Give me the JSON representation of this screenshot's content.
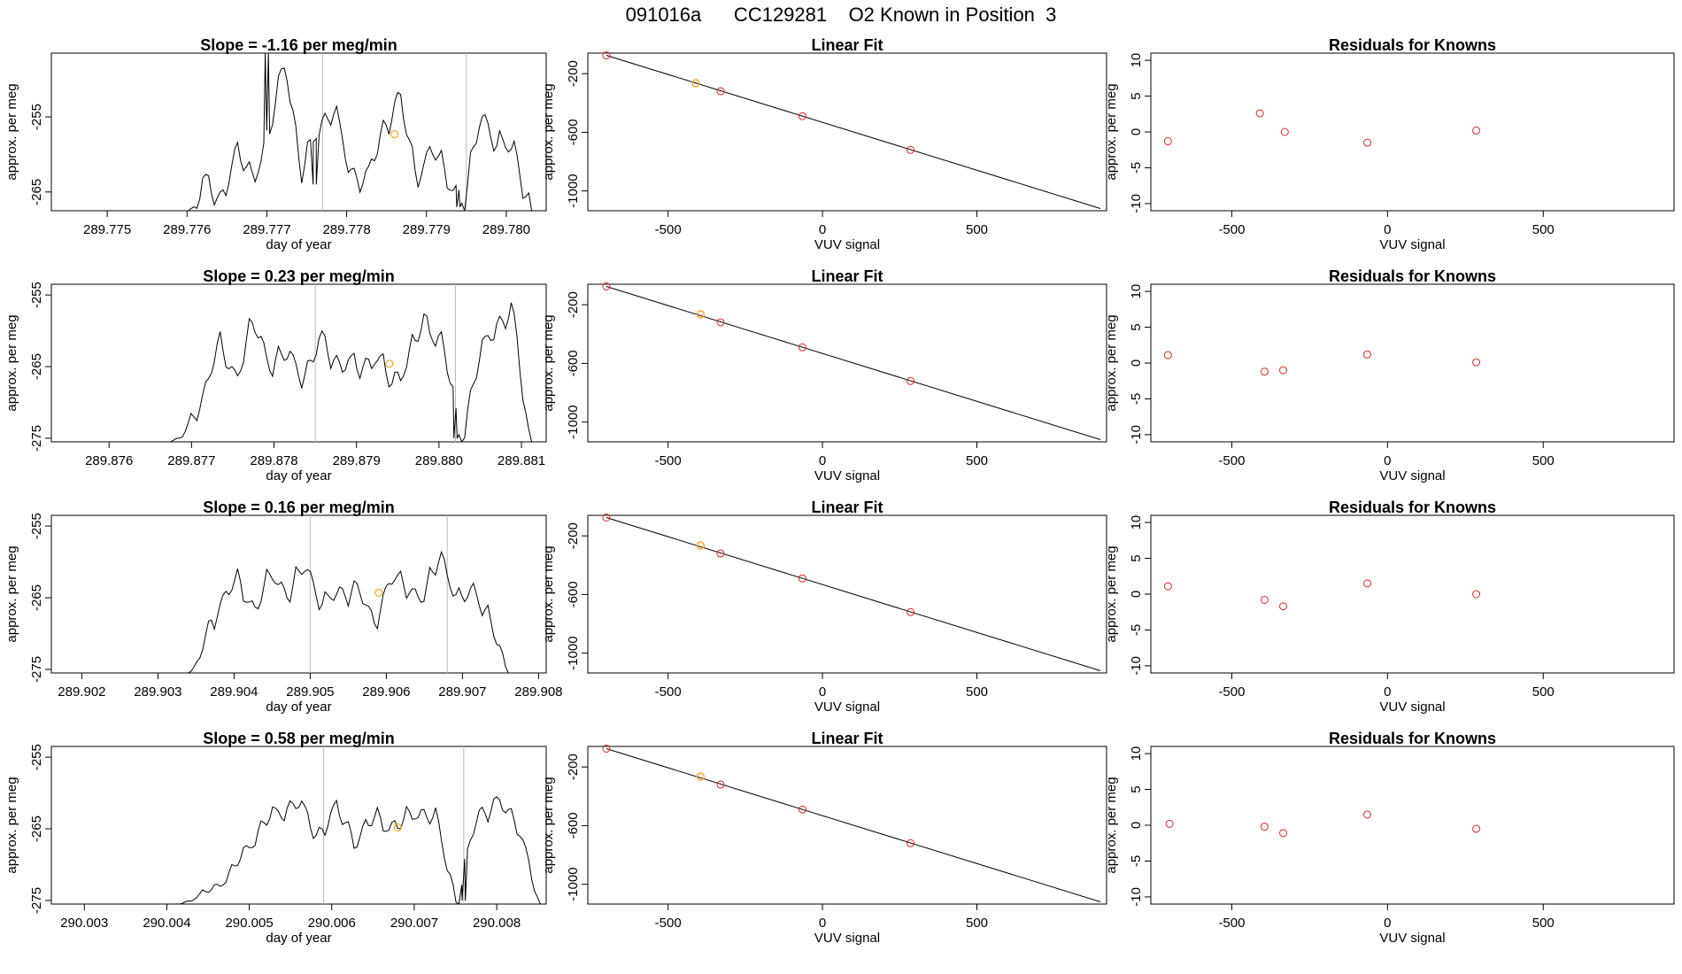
{
  "main_title": "091016a      CC129281    O2 Known in Position  3",
  "chart_data": [
    {
      "row": 1,
      "time_series": {
        "type": "line",
        "title": "Slope =  -1.16  per meg/min",
        "xlabel": "day of year",
        "ylabel": "approx. per meg",
        "xlim": [
          289.7743,
          289.7805
        ],
        "ylim": [
          -267.5,
          -246.5
        ],
        "x_ticks": [
          289.775,
          289.776,
          289.777,
          289.778,
          289.779,
          289.78
        ],
        "x_tick_labels": [
          "289.775",
          "289.776",
          "289.777",
          "289.778",
          "289.779",
          "289.780"
        ],
        "y_ticks": [
          -255,
          -265
        ],
        "y_tick_labels": [
          "-255",
          "-265"
        ],
        "vlines": [
          289.7777,
          289.7795
        ],
        "x_start": 289.776,
        "x_end": 289.7803,
        "baseline": -267.5,
        "level": -256.5,
        "noise": 3.0,
        "ramp_end": 289.7762,
        "highlight_point": {
          "x": 289.7786,
          "y": -257.3
        },
        "dips": [
          {
            "x": 289.7776,
            "y": -264
          },
          {
            "x": 289.7794,
            "y": -267
          }
        ],
        "spike": {
          "x": 289.777,
          "y": -246.5
        },
        "seed": 11,
        "values": [
          -268,
          -264,
          -265.8,
          -260.2,
          -262.5,
          -258.1,
          -246.5,
          -263.2,
          -255.8,
          -254.6,
          -261.9,
          -264.0,
          -256.2,
          -252.7,
          -262.4,
          -259.7,
          -262.9,
          -266.8,
          -253.6,
          -259.5,
          -258.4,
          -268
        ]
      },
      "linear_fit": {
        "type": "scatter",
        "title": "Linear Fit",
        "xlabel": "VUV signal",
        "ylabel": "approx. per meg",
        "xlim": [
          -760,
          920
        ],
        "ylim": [
          -1135,
          -60
        ],
        "x_ticks": [
          -500,
          0,
          500
        ],
        "x_tick_labels": [
          "-500",
          "0",
          "500"
        ],
        "y_ticks": [
          -200,
          -600,
          -1000
        ],
        "y_tick_labels": [
          "-200",
          "-600",
          "-1000"
        ],
        "line": {
          "x": [
            -700,
            900
          ],
          "y": [
            -75,
            -1120
          ]
        },
        "points": [
          {
            "x": -700,
            "y": -75
          },
          {
            "x": -330,
            "y": -320
          },
          {
            "x": -65,
            "y": -490
          },
          {
            "x": 285,
            "y": -720
          }
        ],
        "highlight": {
          "x": -410,
          "y": -265
        }
      },
      "residuals": {
        "type": "scatter",
        "title": "Residuals for Knowns",
        "xlabel": "VUV signal",
        "ylabel": "approx. per meg",
        "xlim": [
          -760,
          920
        ],
        "ylim": [
          -11,
          11
        ],
        "x_ticks": [
          -500,
          0,
          500
        ],
        "x_tick_labels": [
          "-500",
          "0",
          "500"
        ],
        "y_ticks": [
          10,
          5,
          0,
          -5,
          -10
        ],
        "y_tick_labels": [
          "10",
          "5",
          "0",
          "-5",
          "-10"
        ],
        "points": [
          {
            "x": -705,
            "y": -1.3
          },
          {
            "x": -410,
            "y": 2.6
          },
          {
            "x": -330,
            "y": 0.0
          },
          {
            "x": -65,
            "y": -1.5
          },
          {
            "x": 285,
            "y": 0.2
          }
        ]
      }
    },
    {
      "row": 2,
      "time_series": {
        "type": "line",
        "title": "Slope =  0.23  per meg/min",
        "xlabel": "day of year",
        "ylabel": "approx. per meg",
        "xlim": [
          289.8753,
          289.8813
        ],
        "ylim": [
          -275.5,
          -253.5
        ],
        "x_ticks": [
          289.876,
          289.877,
          289.878,
          289.879,
          289.88,
          289.881
        ],
        "x_tick_labels": [
          "289.876",
          "289.877",
          "289.878",
          "289.879",
          "289.880",
          "289.881"
        ],
        "y_ticks": [
          -255,
          -265,
          -275
        ],
        "y_tick_labels": [
          "-255",
          "-265",
          "-275"
        ],
        "vlines": [
          289.8785,
          289.8802
        ],
        "x_start": 289.8767,
        "x_end": 289.8811,
        "baseline": -275.5,
        "level": -265.0,
        "noise": 3.0,
        "ramp_end": 289.8772,
        "highlight_point": {
          "x": 289.8794,
          "y": -264.6
        },
        "dips": [
          {
            "x": 289.8802,
            "y": -275
          }
        ],
        "spike": null,
        "seed": 23,
        "values": [
          -275.5,
          -272.8,
          -268.4,
          -262.4,
          -266.1,
          -259.2,
          -264.3,
          -263.7,
          -266.0,
          -261.4,
          -264.6,
          -265.2,
          -263.5,
          -267.3,
          -263.7,
          -258.4,
          -262.1,
          -275.5,
          -264.6,
          -259.0,
          -257.4,
          -275.5
        ]
      },
      "linear_fit": {
        "type": "scatter",
        "title": "Linear Fit",
        "xlabel": "VUV signal",
        "ylabel": "approx. per meg",
        "xlim": [
          -760,
          920
        ],
        "ylim": [
          -1135,
          -60
        ],
        "x_ticks": [
          -500,
          0,
          500
        ],
        "x_tick_labels": [
          "-500",
          "0",
          "500"
        ],
        "y_ticks": [
          -200,
          -600,
          -1000
        ],
        "y_tick_labels": [
          "-200",
          "-600",
          "-1000"
        ],
        "line": {
          "x": [
            -700,
            900
          ],
          "y": [
            -75,
            -1120
          ]
        },
        "points": [
          {
            "x": -700,
            "y": -75
          },
          {
            "x": -330,
            "y": -320
          },
          {
            "x": -65,
            "y": -490
          },
          {
            "x": 285,
            "y": -720
          }
        ],
        "highlight": {
          "x": -395,
          "y": -265
        }
      },
      "residuals": {
        "type": "scatter",
        "title": "Residuals for Knowns",
        "xlabel": "VUV signal",
        "ylabel": "approx. per meg",
        "xlim": [
          -760,
          920
        ],
        "ylim": [
          -11,
          11
        ],
        "x_ticks": [
          -500,
          0,
          500
        ],
        "x_tick_labels": [
          "-500",
          "0",
          "500"
        ],
        "y_ticks": [
          10,
          5,
          0,
          -5,
          -10
        ],
        "y_tick_labels": [
          "10",
          "5",
          "0",
          "-5",
          "-10"
        ],
        "points": [
          {
            "x": -705,
            "y": 1.1
          },
          {
            "x": -395,
            "y": -1.2
          },
          {
            "x": -335,
            "y": -1.0
          },
          {
            "x": -65,
            "y": 1.2
          },
          {
            "x": 285,
            "y": 0.1
          }
        ]
      }
    },
    {
      "row": 3,
      "time_series": {
        "type": "line",
        "title": "Slope =  0.16  per meg/min",
        "xlabel": "day of year",
        "ylabel": "approx. per meg",
        "xlim": [
          289.9016,
          289.9081
        ],
        "ylim": [
          -275.5,
          -253.5
        ],
        "x_ticks": [
          289.902,
          289.903,
          289.904,
          289.905,
          289.906,
          289.907,
          289.908
        ],
        "x_tick_labels": [
          "289.902",
          "289.903",
          "289.904",
          "289.905",
          "289.906",
          "289.907",
          "289.908"
        ],
        "y_ticks": [
          -255,
          -265,
          -275
        ],
        "y_tick_labels": [
          "-255",
          "-265",
          "-275"
        ],
        "vlines": [
          289.905,
          289.9068
        ],
        "x_start": 289.9034,
        "x_end": 289.9076,
        "baseline": -275.5,
        "level": -265.5,
        "noise": 2.6,
        "ramp_end": 289.9037,
        "highlight_point": {
          "x": 289.9059,
          "y": -264.3
        },
        "dips": [],
        "spike": null,
        "seed": 37,
        "values": [
          -275.5,
          -269.0,
          -265.7,
          -262.4,
          -266.9,
          -261.3,
          -264.8,
          -260.1,
          -266.4,
          -264.0,
          -263.9,
          -268.3,
          -262.7,
          -263.1,
          -265.4,
          -258.3,
          -266.1,
          -263.2,
          -269.2,
          -275.5
        ]
      },
      "linear_fit": {
        "type": "scatter",
        "title": "Linear Fit",
        "xlabel": "VUV signal",
        "ylabel": "approx. per meg",
        "xlim": [
          -760,
          920
        ],
        "ylim": [
          -1135,
          -60
        ],
        "x_ticks": [
          -500,
          0,
          500
        ],
        "x_tick_labels": [
          "-500",
          "0",
          "500"
        ],
        "y_ticks": [
          -200,
          -600,
          -1000
        ],
        "y_tick_labels": [
          "-200",
          "-600",
          "-1000"
        ],
        "line": {
          "x": [
            -700,
            900
          ],
          "y": [
            -75,
            -1120
          ]
        },
        "points": [
          {
            "x": -700,
            "y": -75
          },
          {
            "x": -330,
            "y": -320
          },
          {
            "x": -65,
            "y": -490
          },
          {
            "x": 285,
            "y": -720
          }
        ],
        "highlight": {
          "x": -395,
          "y": -265
        }
      },
      "residuals": {
        "type": "scatter",
        "title": "Residuals for Knowns",
        "xlabel": "VUV signal",
        "ylabel": "approx. per meg",
        "xlim": [
          -760,
          920
        ],
        "ylim": [
          -11,
          11
        ],
        "x_ticks": [
          -500,
          0,
          500
        ],
        "x_tick_labels": [
          "-500",
          "0",
          "500"
        ],
        "y_ticks": [
          10,
          5,
          0,
          -5,
          -10
        ],
        "y_tick_labels": [
          "10",
          "5",
          "0",
          "-5",
          "-10"
        ],
        "points": [
          {
            "x": -705,
            "y": 1.1
          },
          {
            "x": -395,
            "y": -0.8
          },
          {
            "x": -335,
            "y": -1.7
          },
          {
            "x": -65,
            "y": 1.5
          },
          {
            "x": 285,
            "y": 0.0
          }
        ]
      }
    },
    {
      "row": 4,
      "time_series": {
        "type": "line",
        "title": "Slope =  0.58  per meg/min",
        "xlabel": "day of year",
        "ylabel": "approx. per meg",
        "xlim": [
          290.0026,
          290.0086
        ],
        "ylim": [
          -275.5,
          -253.5
        ],
        "x_ticks": [
          290.003,
          290.004,
          290.005,
          290.006,
          290.007,
          290.008
        ],
        "x_tick_labels": [
          "290.003",
          "290.004",
          "290.005",
          "290.006",
          "290.007",
          "290.008"
        ],
        "y_ticks": [
          -255,
          -265,
          -275
        ],
        "y_tick_labels": [
          "-255",
          "-265",
          "-275"
        ],
        "vlines": [
          290.0059,
          290.0076
        ],
        "x_start": 290.0041,
        "x_end": 290.0085,
        "baseline": -275.5,
        "level": -264.5,
        "noise": 2.4,
        "ramp_end": 290.0052,
        "highlight_point": {
          "x": 290.0068,
          "y": -264.8
        },
        "dips": [
          {
            "x": 290.0076,
            "y": -275
          }
        ],
        "spike": null,
        "seed": 53,
        "values": [
          -275.5,
          -271.1,
          -270.2,
          -267.6,
          -264.5,
          -263.2,
          -261.0,
          -265.8,
          -262.4,
          -266.5,
          -263.3,
          -265.0,
          -262.2,
          -264.1,
          -275.5,
          -262.7,
          -261.6,
          -263.8,
          -275.5
        ]
      },
      "linear_fit": {
        "type": "scatter",
        "title": "Linear Fit",
        "xlabel": "VUV signal",
        "ylabel": "approx. per meg",
        "xlim": [
          -760,
          920
        ],
        "ylim": [
          -1135,
          -60
        ],
        "x_ticks": [
          -500,
          0,
          500
        ],
        "x_tick_labels": [
          "-500",
          "0",
          "500"
        ],
        "y_ticks": [
          -200,
          -600,
          -1000
        ],
        "y_tick_labels": [
          "-200",
          "-600",
          "-1000"
        ],
        "line": {
          "x": [
            -700,
            900
          ],
          "y": [
            -75,
            -1120
          ]
        },
        "points": [
          {
            "x": -700,
            "y": -75
          },
          {
            "x": -330,
            "y": -320
          },
          {
            "x": -65,
            "y": -490
          },
          {
            "x": 285,
            "y": -720
          }
        ],
        "highlight": {
          "x": -395,
          "y": -265
        }
      },
      "residuals": {
        "type": "scatter",
        "title": "Residuals for Knowns",
        "xlabel": "VUV signal",
        "ylabel": "approx. per meg",
        "xlim": [
          -760,
          920
        ],
        "ylim": [
          -11,
          11
        ],
        "x_ticks": [
          -500,
          0,
          500
        ],
        "x_tick_labels": [
          "-500",
          "0",
          "500"
        ],
        "y_ticks": [
          10,
          5,
          0,
          -5,
          -10
        ],
        "y_tick_labels": [
          "10",
          "5",
          "0",
          "-5",
          "-10"
        ],
        "points": [
          {
            "x": -700,
            "y": 0.2
          },
          {
            "x": -395,
            "y": -0.2
          },
          {
            "x": -335,
            "y": -1.1
          },
          {
            "x": -65,
            "y": 1.5
          },
          {
            "x": 285,
            "y": -0.5
          }
        ]
      }
    }
  ]
}
